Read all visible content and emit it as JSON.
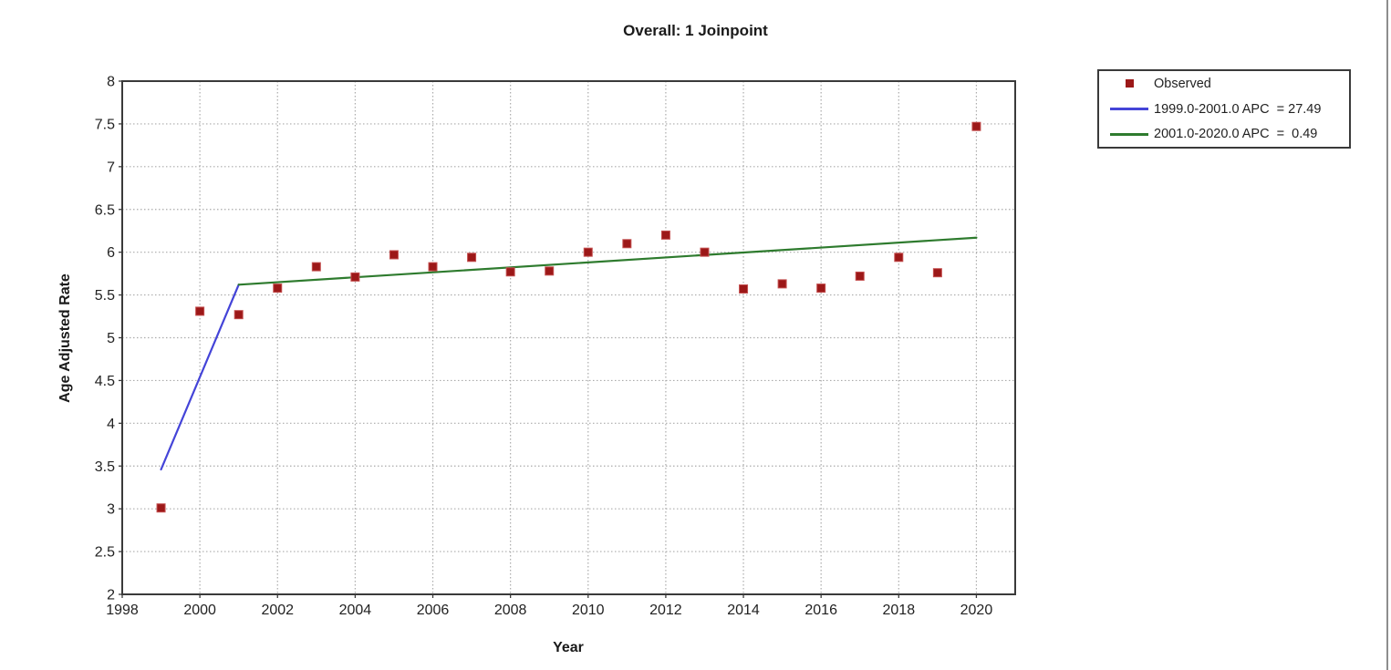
{
  "title": "Overall: 1 Joinpoint",
  "chart_data": {
    "type": "scatter",
    "title": "Overall: 1 Joinpoint",
    "xlabel": "Year",
    "ylabel": "Age Adjusted Rate",
    "xlim": [
      1998,
      2021
    ],
    "ylim": [
      2,
      8
    ],
    "x_ticks": [
      1998,
      2000,
      2002,
      2004,
      2006,
      2008,
      2010,
      2012,
      2014,
      2016,
      2018,
      2020
    ],
    "y_ticks": [
      2,
      2.5,
      3,
      3.5,
      4,
      4.5,
      5,
      5.5,
      6,
      6.5,
      7,
      7.5,
      8
    ],
    "grid": true,
    "legend_position": "outside-right",
    "observed": {
      "name": "Observed",
      "color": "#9C1818",
      "marker": "square",
      "x": [
        1999,
        2000,
        2001,
        2002,
        2003,
        2004,
        2005,
        2006,
        2007,
        2008,
        2009,
        2010,
        2011,
        2012,
        2013,
        2014,
        2015,
        2016,
        2017,
        2018,
        2019,
        2020
      ],
      "y": [
        3.01,
        5.31,
        5.27,
        5.58,
        5.83,
        5.71,
        5.97,
        5.83,
        5.94,
        5.77,
        5.78,
        6.0,
        6.1,
        6.2,
        6.0,
        5.57,
        5.63,
        5.58,
        5.72,
        5.94,
        5.76,
        7.47
      ]
    },
    "segments": [
      {
        "name": "1999.0-2001.0 APC  = 27.49",
        "color": "#4444D8",
        "x": [
          1999,
          2001
        ],
        "y": [
          3.46,
          5.62
        ]
      },
      {
        "name": "2001.0-2020.0 APC  =  0.49",
        "color": "#2E7B2E",
        "x": [
          2001,
          2020
        ],
        "y": [
          5.62,
          6.17
        ]
      }
    ]
  },
  "legend": {
    "items": [
      {
        "label": "Observed",
        "swatch": "marker",
        "color": "#9C1818"
      },
      {
        "label": "1999.0-2001.0 APC  = 27.49",
        "swatch": "line",
        "color": "#4444D8"
      },
      {
        "label": "2001.0-2020.0 APC  =  0.49",
        "swatch": "line",
        "color": "#2E7B2E"
      }
    ]
  },
  "colors": {
    "gridline": "#ABABAB",
    "frame": "#3A3A3A",
    "tick_text": "#222222",
    "marker_edge": "#C45050"
  }
}
